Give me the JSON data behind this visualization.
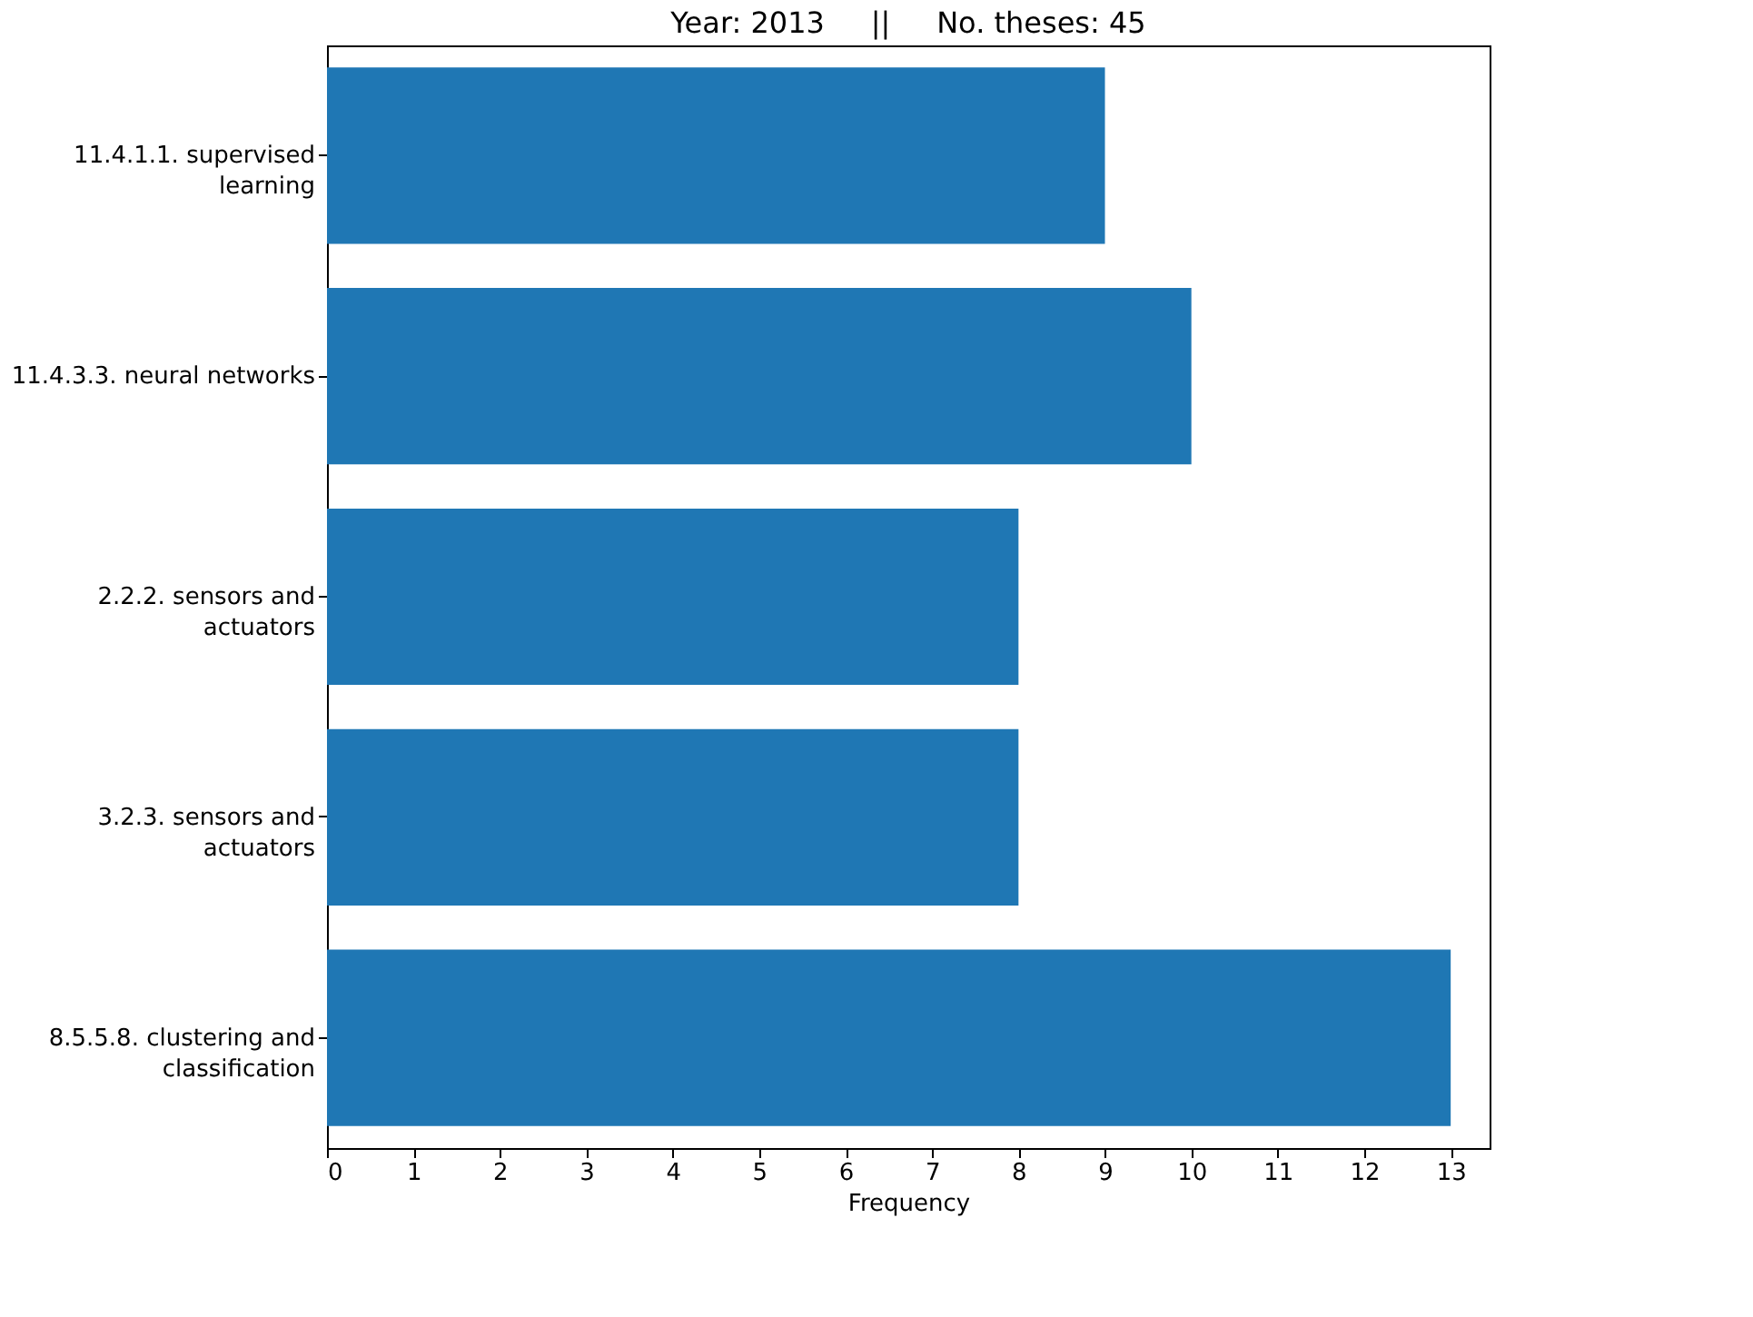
{
  "chart_data": {
    "type": "bar",
    "orientation": "horizontal",
    "title": "Year: 2013     ||     No. theses: 45",
    "xlabel": "Frequency",
    "categories": [
      "11.4.1.1. supervised\nlearning",
      "11.4.3.3. neural networks",
      "2.2.2. sensors and\nactuators",
      "3.2.3. sensors and\nactuators",
      "8.5.5.8. clustering and\nclassification"
    ],
    "values": [
      9,
      10,
      8,
      8,
      13
    ],
    "color": "#1f77b4",
    "xlim": [
      0,
      13.45
    ],
    "xticks": [
      0,
      1,
      2,
      3,
      4,
      5,
      6,
      7,
      8,
      9,
      10,
      11,
      12,
      13
    ],
    "grid": false
  }
}
